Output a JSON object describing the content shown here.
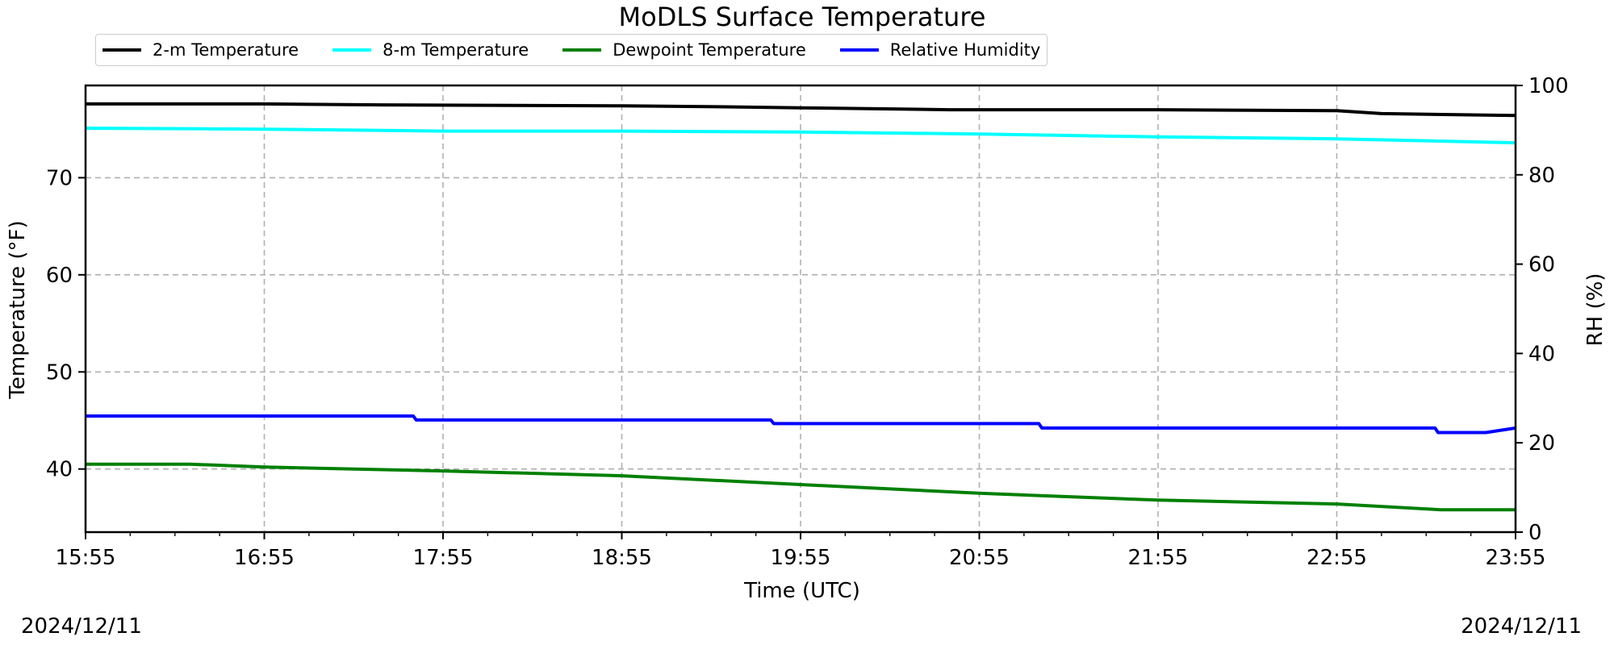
{
  "chart_data": {
    "type": "line",
    "title": "MoDLS Surface Temperature",
    "xlabel": "Time (UTC)",
    "ylabel": "Temperature ($^\\circ$F)",
    "ylabel_display": "Temperature (°F)",
    "y2label": "RH (%)",
    "x_ticks": [
      "15:55",
      "16:55",
      "17:55",
      "18:55",
      "19:55",
      "20:55",
      "21:55",
      "22:55",
      "23:55"
    ],
    "xlim": [
      "15:55",
      "23:55"
    ],
    "ylim": [
      33.5,
      79.5
    ],
    "y_ticks": [
      40,
      50,
      60,
      70
    ],
    "y2lim": [
      0,
      100
    ],
    "y2_ticks": [
      0,
      20,
      40,
      60,
      80,
      100
    ],
    "grid": true,
    "legend_position": "top-left, above plot",
    "dates": {
      "left": "2024/12/11",
      "right": "2024/12/11"
    },
    "series": [
      {
        "name": "2-m Temperature",
        "color": "#000000",
        "axis": "left",
        "x": [
          "15:55",
          "16:55",
          "17:35",
          "18:55",
          "19:30",
          "19:55",
          "20:45",
          "21:55",
          "22:55",
          "23:10",
          "23:55"
        ],
        "values": [
          77.6,
          77.6,
          77.5,
          77.4,
          77.3,
          77.2,
          77.0,
          77.0,
          76.9,
          76.6,
          76.4
        ]
      },
      {
        "name": "8-m Temperature",
        "color": "#00ffff",
        "axis": "left",
        "x": [
          "15:55",
          "16:55",
          "17:55",
          "18:55",
          "19:55",
          "20:55",
          "21:55",
          "22:55",
          "23:55"
        ],
        "values": [
          75.1,
          75.0,
          74.8,
          74.8,
          74.7,
          74.5,
          74.2,
          74.0,
          73.6
        ]
      },
      {
        "name": "Dewpoint Temperature",
        "color": "#008000",
        "axis": "left",
        "x": [
          "15:55",
          "16:30",
          "16:55",
          "17:55",
          "18:55",
          "19:55",
          "20:55",
          "21:55",
          "22:55",
          "23:30",
          "23:55"
        ],
        "values": [
          40.5,
          40.5,
          40.2,
          39.8,
          39.3,
          38.4,
          37.5,
          36.8,
          36.4,
          35.8,
          35.8
        ]
      },
      {
        "name": "Relative Humidity",
        "color": "#0000ff",
        "axis": "right",
        "x": [
          "15:55",
          "17:45",
          "17:46",
          "19:45",
          "19:46",
          "21:15",
          "21:16",
          "23:28",
          "23:29",
          "23:45",
          "23:55"
        ],
        "values": [
          26.0,
          26.0,
          25.1,
          25.1,
          24.3,
          24.3,
          23.3,
          23.3,
          22.3,
          22.3,
          23.3
        ]
      }
    ]
  }
}
